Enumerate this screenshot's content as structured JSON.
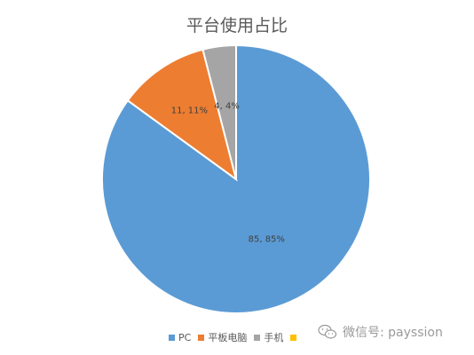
{
  "chart_data": {
    "type": "pie",
    "title": "平台使用占比",
    "slices": [
      {
        "name": "PC",
        "value": 85,
        "label": "85, 85%",
        "color": "#5b9bd5"
      },
      {
        "name": "平板电脑",
        "value": 11,
        "label": "11, 11%",
        "color": "#ed7d31"
      },
      {
        "name": "手机",
        "value": 4,
        "label": "4, 4%",
        "color": "#a5a5a5"
      }
    ],
    "legend": {
      "placement": "bottom",
      "entries": [
        {
          "name": "PC",
          "color": "#5b9bd5"
        },
        {
          "name": "平板电脑",
          "color": "#ed7d31"
        },
        {
          "name": "手机",
          "color": "#a5a5a5"
        },
        {
          "name": "",
          "color": "#ffc000"
        }
      ]
    }
  },
  "watermark": {
    "text": "微信号: payssion",
    "icon": "wechat-icon"
  }
}
